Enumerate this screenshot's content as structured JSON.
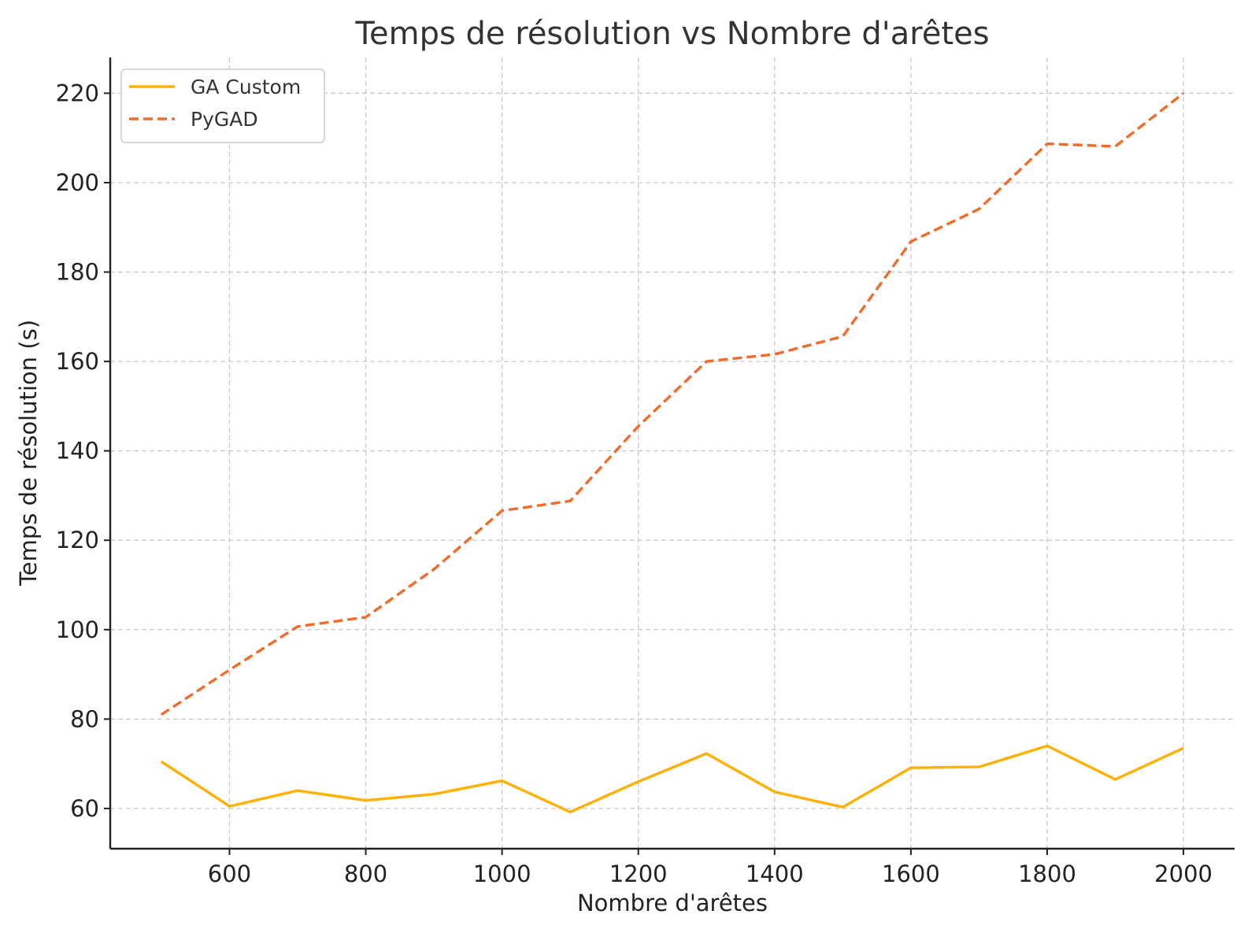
{
  "chart_data": {
    "type": "line",
    "title": "Temps de résolution vs Nombre d'arêtes",
    "xlabel": "Nombre d'arêtes",
    "ylabel": "Temps de résolution (s)",
    "x": [
      500,
      600,
      700,
      800,
      900,
      1000,
      1100,
      1200,
      1300,
      1400,
      1500,
      1600,
      1700,
      1800,
      1900,
      2000
    ],
    "xlim": [
      425,
      2075
    ],
    "ylim": [
      51,
      228
    ],
    "xticks": [
      600,
      800,
      1000,
      1200,
      1400,
      1600,
      1800,
      2000
    ],
    "yticks": [
      60,
      80,
      100,
      120,
      140,
      160,
      180,
      200,
      220
    ],
    "grid": true,
    "legend_position": "top-left",
    "series": [
      {
        "name": "GA Custom",
        "color": "#FFB000",
        "line_style": "solid",
        "values": [
          70.5,
          60.5,
          64.0,
          61.8,
          63.2,
          66.2,
          59.2,
          66.0,
          72.3,
          63.7,
          60.3,
          69.1,
          69.3,
          74.0,
          66.5,
          73.5
        ]
      },
      {
        "name": "PyGAD",
        "color": "#F26B2A",
        "line_style": "dashed",
        "values": [
          81.0,
          91.0,
          100.7,
          102.8,
          113.5,
          126.6,
          128.8,
          145.5,
          160.0,
          161.6,
          165.6,
          186.8,
          194.1,
          208.7,
          208.1,
          220.0
        ]
      }
    ]
  }
}
